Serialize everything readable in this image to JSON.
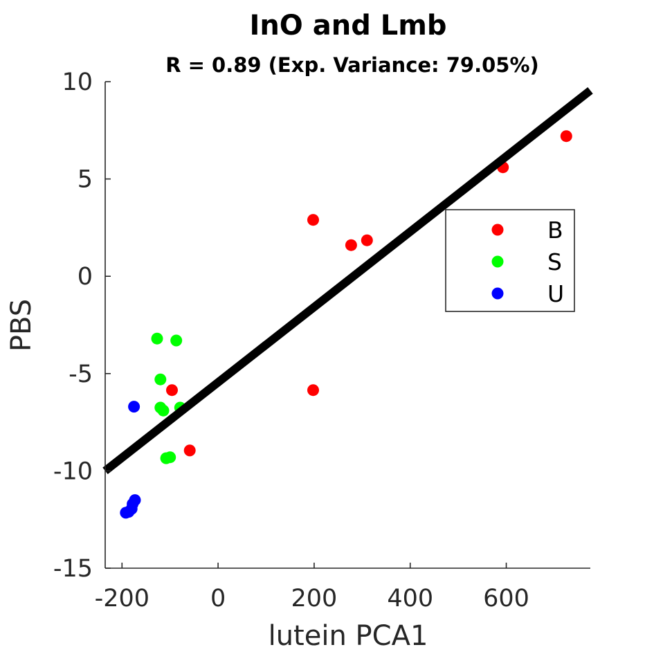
{
  "chart_data": {
    "type": "scatter",
    "title": "InO and Lmb",
    "subtitle": "R = 0.89 (Exp. Variance: 79.05%)",
    "xlabel": "lutein PCA1",
    "ylabel": "PBS",
    "xlim": [
      -235,
      775
    ],
    "ylim": [
      -15,
      10
    ],
    "xticks": [
      -200,
      0,
      200,
      400,
      600
    ],
    "yticks": [
      -15,
      -10,
      -5,
      0,
      5,
      10
    ],
    "grid": false,
    "legend_position": "right",
    "fit_line": {
      "x": [
        -235,
        775
      ],
      "y": [
        -10.0,
        9.55
      ],
      "color": "#000000"
    },
    "series": [
      {
        "name": "B",
        "color": "#ff0000",
        "points": [
          [
            725,
            7.2
          ],
          [
            593,
            5.6
          ],
          [
            198,
            2.9
          ],
          [
            310,
            1.85
          ],
          [
            277,
            1.6
          ],
          [
            -96,
            -5.85
          ],
          [
            198,
            -5.85
          ],
          [
            -59,
            -8.95
          ]
        ]
      },
      {
        "name": "S",
        "color": "#00ff00",
        "points": [
          [
            -127,
            -3.2
          ],
          [
            -87,
            -3.3
          ],
          [
            -120,
            -5.3
          ],
          [
            -120,
            -6.75
          ],
          [
            -114,
            -6.9
          ],
          [
            -79,
            -6.75
          ],
          [
            -100,
            -9.3
          ],
          [
            -108,
            -9.35
          ]
        ]
      },
      {
        "name": "U",
        "color": "#0000ff",
        "points": [
          [
            -175,
            -6.7
          ],
          [
            -173,
            -11.5
          ],
          [
            -178,
            -11.7
          ],
          [
            -180,
            -11.95
          ],
          [
            -186,
            -12.1
          ],
          [
            -192,
            -12.15
          ]
        ]
      }
    ]
  }
}
